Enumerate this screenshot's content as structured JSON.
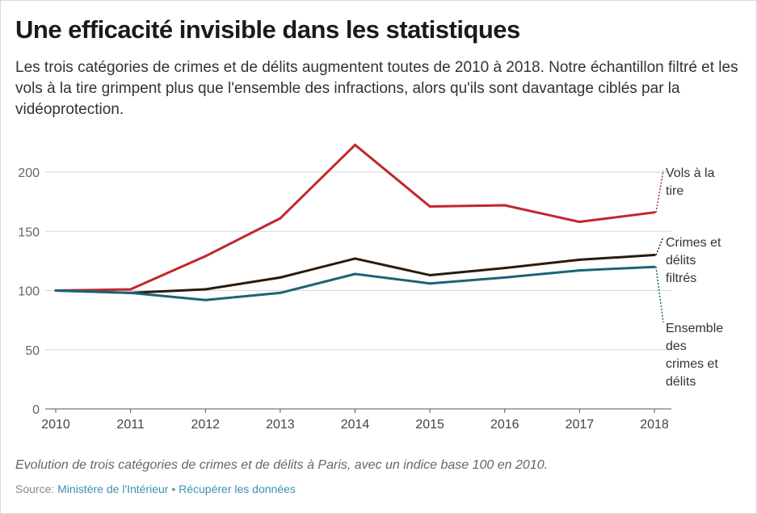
{
  "title": "Une efficacité invisible dans les statistiques",
  "subtitle": "Les trois catégories de crimes et de délits augmentent toutes de 2010 à 2018. Notre échantillon filtré et les vols à la tire grimpent plus que l'ensemble des infractions, alors qu'ils sont davantage ciblés par la vidéoprotection.",
  "caption": "Evolution de trois catégories de crimes et de délits à Paris, avec un indice base 100 en 2010.",
  "source": {
    "label": "Source:",
    "name": "Ministère de l'Intérieur",
    "separator": "•",
    "download": "Récupérer les données"
  },
  "chart_data": {
    "type": "line",
    "x": [
      2010,
      2011,
      2012,
      2013,
      2014,
      2015,
      2016,
      2017,
      2018
    ],
    "ylim": [
      0,
      200
    ],
    "yticks": [
      0,
      50,
      100,
      150,
      200
    ],
    "grid": true,
    "legend": "direct labels at right end of lines",
    "series": [
      {
        "name": "Vols à la tire",
        "color": "#c0272d",
        "label_lines": [
          "Vols à la",
          "tire"
        ],
        "values": [
          100,
          101,
          129,
          161,
          223,
          171,
          172,
          158,
          166
        ]
      },
      {
        "name": "Crimes et délits filtrés",
        "color": "#2a1a0d",
        "label_lines": [
          "Crimes et",
          "délits",
          "filtrés"
        ],
        "values": [
          100,
          98,
          101,
          111,
          127,
          113,
          119,
          126,
          130
        ]
      },
      {
        "name": "Ensemble des crimes et délits",
        "color": "#1b6478",
        "label_lines": [
          "Ensemble",
          "des",
          "crimes et",
          "délits"
        ],
        "values": [
          100,
          98,
          92,
          98,
          114,
          106,
          111,
          117,
          120
        ]
      }
    ]
  }
}
